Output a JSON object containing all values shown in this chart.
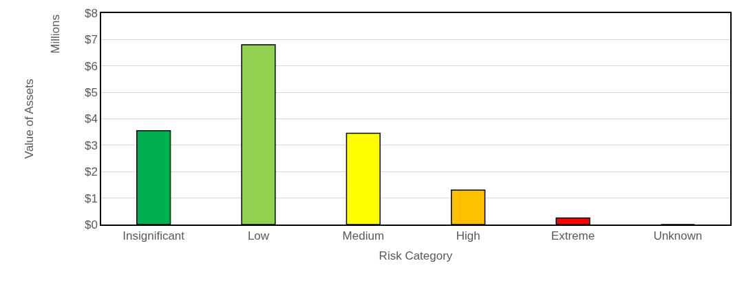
{
  "chart_data": {
    "type": "bar",
    "xlabel": "Risk Category",
    "ylabel": "Value of Assets",
    "annotations": [
      "Millions"
    ],
    "categories": [
      "Insignificant",
      "Low",
      "Medium",
      "High",
      "Extreme",
      "Unknown"
    ],
    "values": [
      3.55,
      6.8,
      3.45,
      1.3,
      0.25,
      0
    ],
    "colors": [
      "#00b050",
      "#92d050",
      "#ffff00",
      "#ffc000",
      "#ff0000",
      "#000000"
    ],
    "ylim": [
      0,
      8
    ],
    "yticks": [
      {
        "value": 0,
        "label": "$0"
      },
      {
        "value": 1,
        "label": "$1"
      },
      {
        "value": 2,
        "label": "$2"
      },
      {
        "value": 3,
        "label": "$3"
      },
      {
        "value": 4,
        "label": "$4"
      },
      {
        "value": 5,
        "label": "$5"
      },
      {
        "value": 6,
        "label": "$6"
      },
      {
        "value": 7,
        "label": "$7"
      },
      {
        "value": 8,
        "label": "$8"
      }
    ],
    "grid": "y"
  }
}
